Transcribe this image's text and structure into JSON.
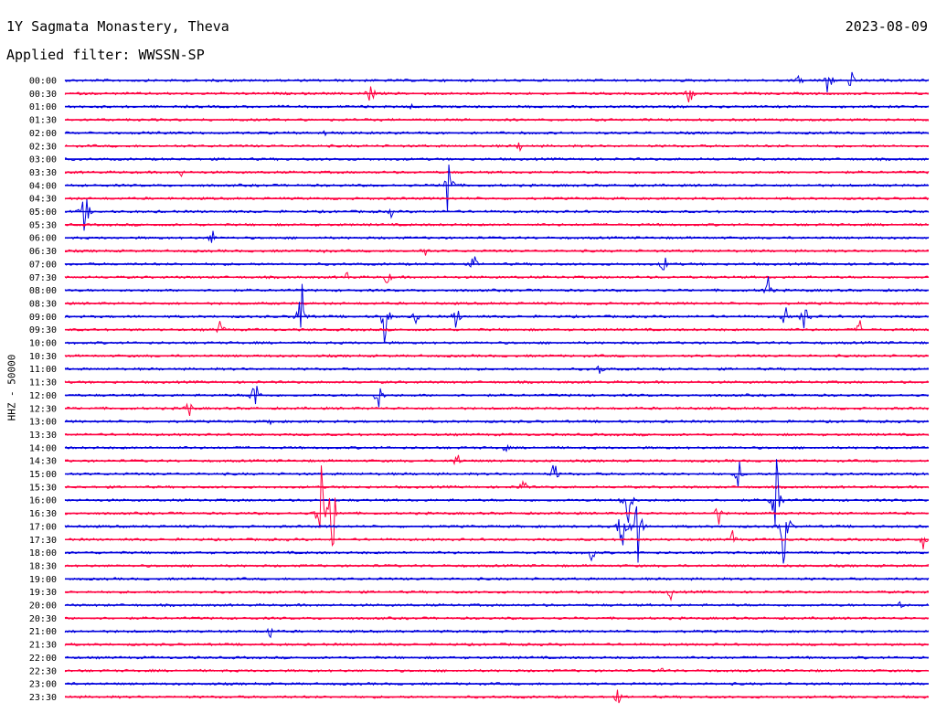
{
  "header": {
    "title": "1Y Sagmata Monastery, Theva",
    "date": "2023-08-09",
    "filter_label": "Applied filter: WWSSN-SP"
  },
  "colors": {
    "trace_a": "#0000dd",
    "trace_b": "#ff0040"
  },
  "chart_data": {
    "type": "line",
    "title": "1Y Sagmata Monastery, Theva",
    "ylabel": "HHZ - 50000",
    "xlabel": "",
    "time_labels": [
      "00:00",
      "00:30",
      "01:00",
      "01:30",
      "02:00",
      "02:30",
      "03:00",
      "03:30",
      "04:00",
      "04:30",
      "05:00",
      "05:30",
      "06:00",
      "06:30",
      "07:00",
      "07:30",
      "08:00",
      "08:30",
      "09:00",
      "09:30",
      "10:00",
      "10:30",
      "11:00",
      "11:30",
      "12:00",
      "12:30",
      "13:00",
      "13:30",
      "14:00",
      "14:30",
      "15:00",
      "15:30",
      "16:00",
      "16:30",
      "17:00",
      "17:30",
      "18:00",
      "18:30",
      "19:00",
      "19:30",
      "20:00",
      "20:30",
      "21:00",
      "21:30",
      "22:00",
      "22:30",
      "23:00",
      "23:30"
    ],
    "row_minutes": 30,
    "events": [
      {
        "row": 0,
        "minute": 26.5,
        "amp": 1.0
      },
      {
        "row": 0,
        "minute": 25.5,
        "amp": 0.4
      },
      {
        "row": 0,
        "minute": 27.3,
        "amp": 0.5
      },
      {
        "row": 1,
        "minute": 10.6,
        "amp": 0.8
      },
      {
        "row": 1,
        "minute": 21.7,
        "amp": 0.6
      },
      {
        "row": 2,
        "minute": 12.0,
        "amp": 0.2
      },
      {
        "row": 4,
        "minute": 9.0,
        "amp": 0.3
      },
      {
        "row": 5,
        "minute": 15.8,
        "amp": 0.3
      },
      {
        "row": 7,
        "minute": 4.0,
        "amp": 0.3
      },
      {
        "row": 8,
        "minute": 13.3,
        "amp": 2.0
      },
      {
        "row": 10,
        "minute": 0.7,
        "amp": 1.2
      },
      {
        "row": 10,
        "minute": 11.3,
        "amp": 0.3
      },
      {
        "row": 12,
        "minute": 5.1,
        "amp": 0.4
      },
      {
        "row": 13,
        "minute": 12.5,
        "amp": 0.5
      },
      {
        "row": 13,
        "minute": 9.0,
        "amp": 0.3
      },
      {
        "row": 14,
        "minute": 14.2,
        "amp": 0.5
      },
      {
        "row": 14,
        "minute": 20.8,
        "amp": 0.6
      },
      {
        "row": 15,
        "minute": 11.2,
        "amp": 0.5
      },
      {
        "row": 15,
        "minute": 9.8,
        "amp": 0.3
      },
      {
        "row": 16,
        "minute": 24.4,
        "amp": 0.8
      },
      {
        "row": 18,
        "minute": 8.2,
        "amp": 1.8
      },
      {
        "row": 18,
        "minute": 11.1,
        "amp": 1.6
      },
      {
        "row": 18,
        "minute": 12.2,
        "amp": 0.4
      },
      {
        "row": 18,
        "minute": 13.6,
        "amp": 0.7
      },
      {
        "row": 18,
        "minute": 25.0,
        "amp": 0.5
      },
      {
        "row": 18,
        "minute": 25.7,
        "amp": 0.9
      },
      {
        "row": 19,
        "minute": 5.4,
        "amp": 0.5
      },
      {
        "row": 19,
        "minute": 27.6,
        "amp": 0.5
      },
      {
        "row": 22,
        "minute": 18.6,
        "amp": 0.4
      },
      {
        "row": 24,
        "minute": 6.6,
        "amp": 1.2
      },
      {
        "row": 24,
        "minute": 10.9,
        "amp": 0.8
      },
      {
        "row": 25,
        "minute": 4.3,
        "amp": 0.6
      },
      {
        "row": 26,
        "minute": 7.2,
        "amp": 0.4
      },
      {
        "row": 28,
        "minute": 15.3,
        "amp": 0.3
      },
      {
        "row": 29,
        "minute": 13.6,
        "amp": 0.7
      },
      {
        "row": 30,
        "minute": 17.0,
        "amp": 0.6
      },
      {
        "row": 30,
        "minute": 23.4,
        "amp": 0.7
      },
      {
        "row": 31,
        "minute": 15.9,
        "amp": 0.6
      },
      {
        "row": 32,
        "minute": 19.5,
        "amp": 2.5
      },
      {
        "row": 32,
        "minute": 24.7,
        "amp": 2.5
      },
      {
        "row": 33,
        "minute": 8.9,
        "amp": 2.5
      },
      {
        "row": 33,
        "minute": 9.3,
        "amp": 2.5
      },
      {
        "row": 33,
        "minute": 22.7,
        "amp": 0.6
      },
      {
        "row": 34,
        "minute": 19.4,
        "amp": 2.2
      },
      {
        "row": 34,
        "minute": 19.9,
        "amp": 2.0
      },
      {
        "row": 34,
        "minute": 25.0,
        "amp": 2.2
      },
      {
        "row": 35,
        "minute": 23.2,
        "amp": 0.5
      },
      {
        "row": 35,
        "minute": 29.8,
        "amp": 0.5
      },
      {
        "row": 36,
        "minute": 18.3,
        "amp": 0.5
      },
      {
        "row": 39,
        "minute": 21.0,
        "amp": 0.4
      },
      {
        "row": 40,
        "minute": 29.0,
        "amp": 0.3
      },
      {
        "row": 42,
        "minute": 7.1,
        "amp": 0.4
      },
      {
        "row": 45,
        "minute": 20.7,
        "amp": 0.3
      },
      {
        "row": 47,
        "minute": 19.2,
        "amp": 0.4
      }
    ]
  }
}
